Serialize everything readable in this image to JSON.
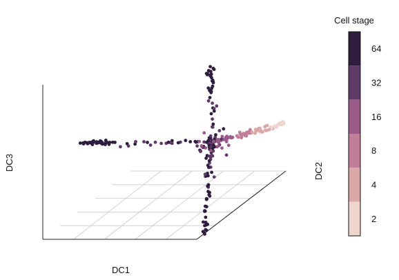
{
  "chart_data": {
    "type": "scatter",
    "projection": "3d",
    "xlabel": "DC1",
    "ylabel": "DC2",
    "zlabel": "DC3",
    "grid": true,
    "legend": {
      "title": "Cell stage",
      "placement": "right",
      "levels": [
        "2",
        "4",
        "8",
        "16",
        "32",
        "64"
      ],
      "colors": [
        "#efd5cc",
        "#dba8a8",
        "#c07e98",
        "#9a5b88",
        "#5f3a68",
        "#2e1d3f"
      ]
    },
    "arms": {
      "dc1_arm": {
        "start": [
          0.0,
          0.0,
          0.0
        ],
        "end": [
          -1.0,
          0.0,
          0.0
        ],
        "stages": [
          "32",
          "64"
        ]
      },
      "dc2_arm": {
        "start": [
          0.0,
          0.0,
          0.0
        ],
        "end": [
          0.0,
          0.45,
          0.0
        ],
        "stages": [
          "2",
          "4",
          "8",
          "16"
        ]
      },
      "dc3_up_arm": {
        "start": [
          0.0,
          0.0,
          0.0
        ],
        "end": [
          0.0,
          0.0,
          0.75
        ],
        "stages": [
          "32",
          "64"
        ]
      },
      "dc3_down_arm": {
        "start": [
          0.0,
          0.0,
          0.0
        ],
        "end": [
          0.0,
          0.0,
          -1.0
        ],
        "stages": [
          "32",
          "64"
        ]
      }
    }
  }
}
